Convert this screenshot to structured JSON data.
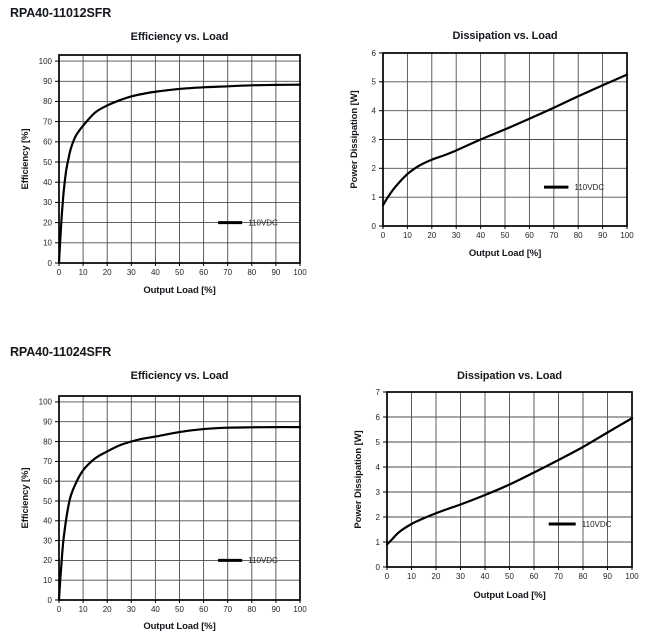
{
  "headings": [
    "RPA40-11012SFR",
    "RPA40-11024SFR"
  ],
  "chart_data": [
    {
      "group": "RPA40-11012SFR",
      "type": "line",
      "title": "Efficiency vs. Load",
      "xlabel": "Output Load [%]",
      "ylabel": "Efficiency [%]",
      "xlim": [
        0,
        100
      ],
      "ylim": [
        0,
        103
      ],
      "xticks": [
        0,
        10,
        20,
        30,
        40,
        50,
        60,
        70,
        80,
        90,
        100
      ],
      "yticks": [
        0,
        10,
        20,
        30,
        40,
        50,
        60,
        70,
        80,
        90,
        100
      ],
      "grid": true,
      "legend": {
        "label": "110VDC",
        "position": "inside lower right",
        "x1": 66,
        "x2": 76,
        "text_x": 78.5,
        "y": 20
      },
      "series": [
        {
          "name": "110VDC",
          "x": [
            0,
            0.5,
            1,
            1.5,
            2,
            3,
            4,
            5,
            7,
            10,
            15,
            20,
            25,
            30,
            35,
            40,
            50,
            60,
            70,
            80,
            90,
            100
          ],
          "y": [
            0,
            11,
            21,
            29,
            36,
            46,
            52,
            57,
            63,
            68,
            74.5,
            78,
            80.5,
            82.5,
            83.8,
            84.8,
            86.2,
            87,
            87.5,
            88,
            88.2,
            88.3
          ]
        }
      ]
    },
    {
      "group": "RPA40-11012SFR",
      "type": "line",
      "title": "Dissipation vs. Load",
      "xlabel": "Output Load [%]",
      "ylabel": "Power Dissipation [W]",
      "xlim": [
        0,
        100
      ],
      "ylim": [
        0,
        6
      ],
      "xticks": [
        0,
        10,
        20,
        30,
        40,
        50,
        60,
        70,
        80,
        90,
        100
      ],
      "yticks": [
        0,
        1,
        2,
        3,
        4,
        5,
        6
      ],
      "grid": true,
      "legend": {
        "label": "110VDC",
        "position": "inside lower right",
        "x1": 66,
        "x2": 76,
        "text_x": 78.5,
        "y": 1.35
      },
      "series": [
        {
          "name": "110VDC",
          "x": [
            0,
            2,
            5,
            10,
            15,
            20,
            25,
            30,
            40,
            50,
            60,
            70,
            80,
            90,
            100
          ],
          "y": [
            0.72,
            1.0,
            1.35,
            1.8,
            2.1,
            2.3,
            2.45,
            2.62,
            3.0,
            3.35,
            3.72,
            4.1,
            4.5,
            4.88,
            5.25
          ]
        }
      ]
    },
    {
      "group": "RPA40-11024SFR",
      "type": "line",
      "title": "Efficiency vs. Load",
      "xlabel": "Output Load [%]",
      "ylabel": "Efficiency [%]",
      "xlim": [
        0,
        100
      ],
      "ylim": [
        0,
        103
      ],
      "xticks": [
        0,
        10,
        20,
        30,
        40,
        50,
        60,
        70,
        80,
        90,
        100
      ],
      "yticks": [
        0,
        10,
        20,
        30,
        40,
        50,
        60,
        70,
        80,
        90,
        100
      ],
      "grid": true,
      "legend": {
        "label": "110VDC",
        "position": "inside lower right",
        "x1": 66,
        "x2": 76,
        "text_x": 78.5,
        "y": 20
      },
      "series": [
        {
          "name": "110VDC",
          "x": [
            0,
            0.5,
            1,
            1.5,
            2,
            3,
            4,
            5,
            7,
            10,
            15,
            20,
            25,
            30,
            35,
            40,
            50,
            60,
            70,
            80,
            90,
            100
          ],
          "y": [
            0,
            10,
            18,
            26,
            32,
            41,
            48,
            53,
            59,
            65.5,
            71.5,
            75,
            78,
            80,
            81.5,
            82.5,
            84.8,
            86.3,
            87,
            87.2,
            87.3,
            87.3
          ]
        }
      ]
    },
    {
      "group": "RPA40-11024SFR",
      "type": "line",
      "title": "Dissipation vs. Load",
      "xlabel": "Output Load [%]",
      "ylabel": "Power Dissipation [W]",
      "xlim": [
        0,
        100
      ],
      "ylim": [
        0,
        7
      ],
      "xticks": [
        0,
        10,
        20,
        30,
        40,
        50,
        60,
        70,
        80,
        90,
        100
      ],
      "yticks": [
        0,
        1,
        2,
        3,
        4,
        5,
        6,
        7
      ],
      "grid": true,
      "legend": {
        "label": "110VDC",
        "position": "inside lower right",
        "x1": 66,
        "x2": 77,
        "text_x": 79.5,
        "y": 1.72
      },
      "series": [
        {
          "name": "110VDC",
          "x": [
            0,
            2,
            5,
            10,
            15,
            20,
            25,
            30,
            40,
            50,
            60,
            70,
            80,
            90,
            100
          ],
          "y": [
            0.9,
            1.1,
            1.4,
            1.72,
            1.95,
            2.15,
            2.33,
            2.5,
            2.88,
            3.3,
            3.78,
            4.28,
            4.8,
            5.38,
            5.95
          ]
        }
      ]
    }
  ],
  "style": {
    "curve_color": "#000000",
    "grid_color": "#4d4d4d",
    "border_color": "#000000",
    "text_color": "#1a1c20"
  }
}
